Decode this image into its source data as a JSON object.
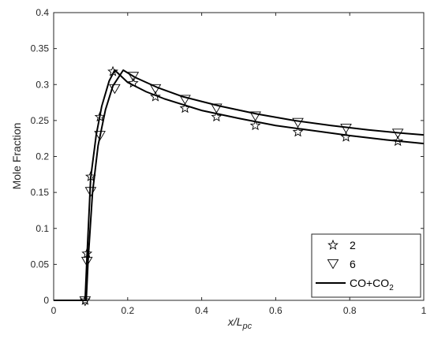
{
  "chart_data": {
    "type": "line",
    "xlabel": "x/L",
    "xlabel_sub": "pc",
    "ylabel": "Mole Fraction",
    "xlim": [
      0,
      1
    ],
    "ylim": [
      0,
      0.4
    ],
    "x_ticks": [
      0,
      0.2,
      0.4,
      0.6,
      0.8,
      1
    ],
    "x_tick_labels": [
      "0",
      "0.2",
      "0.4",
      "0.6",
      "0.8",
      "1"
    ],
    "y_ticks": [
      0,
      0.05,
      0.1,
      0.15,
      0.2,
      0.25,
      0.3,
      0.35,
      0.4
    ],
    "y_tick_labels": [
      "0",
      "0.05",
      "0.1",
      "0.15",
      "0.2",
      "0.25",
      "0.3",
      "0.35",
      "0.4"
    ],
    "grid": false,
    "legend_position": "bottom-right",
    "legend": {
      "entries": [
        {
          "label": "2",
          "marker": "star"
        },
        {
          "label": "6",
          "marker": "triangle-down"
        },
        {
          "label": "CO+CO",
          "label_sub": "2",
          "marker": "line"
        }
      ]
    },
    "series": [
      {
        "name": "2",
        "marker": "star",
        "points": [
          [
            0.085,
            0.0
          ],
          [
            0.09,
            0.065
          ],
          [
            0.1,
            0.172
          ],
          [
            0.125,
            0.255
          ],
          [
            0.16,
            0.318
          ],
          [
            0.215,
            0.302
          ],
          [
            0.275,
            0.283
          ],
          [
            0.355,
            0.267
          ],
          [
            0.44,
            0.255
          ],
          [
            0.545,
            0.243
          ],
          [
            0.66,
            0.234
          ],
          [
            0.79,
            0.227
          ],
          [
            0.93,
            0.221
          ]
        ]
      },
      {
        "name": "6",
        "marker": "triangle-down",
        "points": [
          [
            0.085,
            0.0
          ],
          [
            0.09,
            0.055
          ],
          [
            0.1,
            0.152
          ],
          [
            0.125,
            0.23
          ],
          [
            0.165,
            0.295
          ],
          [
            0.215,
            0.312
          ],
          [
            0.275,
            0.295
          ],
          [
            0.355,
            0.28
          ],
          [
            0.44,
            0.268
          ],
          [
            0.545,
            0.257
          ],
          [
            0.66,
            0.248
          ],
          [
            0.79,
            0.24
          ],
          [
            0.93,
            0.233
          ]
        ]
      },
      {
        "name": "CO+CO2",
        "marker": "line",
        "points": [
          [
            0,
            0.0
          ],
          [
            0.08,
            0.0
          ],
          [
            0.085,
            0.0
          ],
          [
            0.09,
            0.06
          ],
          [
            0.1,
            0.17
          ],
          [
            0.115,
            0.23
          ],
          [
            0.13,
            0.27
          ],
          [
            0.15,
            0.305
          ],
          [
            0.165,
            0.32
          ],
          [
            0.2,
            0.303
          ],
          [
            0.25,
            0.29
          ],
          [
            0.3,
            0.28
          ],
          [
            0.4,
            0.264
          ],
          [
            0.5,
            0.253
          ],
          [
            0.6,
            0.243
          ],
          [
            0.7,
            0.236
          ],
          [
            0.8,
            0.229
          ],
          [
            0.9,
            0.223
          ],
          [
            1.0,
            0.218
          ]
        ]
      },
      {
        "name": "CO+CO2",
        "marker": "line",
        "points": [
          [
            0,
            0.0
          ],
          [
            0.08,
            0.0
          ],
          [
            0.088,
            0.0
          ],
          [
            0.093,
            0.055
          ],
          [
            0.105,
            0.15
          ],
          [
            0.12,
            0.215
          ],
          [
            0.14,
            0.265
          ],
          [
            0.16,
            0.298
          ],
          [
            0.188,
            0.32
          ],
          [
            0.22,
            0.31
          ],
          [
            0.28,
            0.296
          ],
          [
            0.35,
            0.283
          ],
          [
            0.45,
            0.27
          ],
          [
            0.55,
            0.259
          ],
          [
            0.65,
            0.25
          ],
          [
            0.75,
            0.243
          ],
          [
            0.85,
            0.237
          ],
          [
            0.95,
            0.232
          ],
          [
            1.0,
            0.23
          ]
        ]
      }
    ]
  }
}
